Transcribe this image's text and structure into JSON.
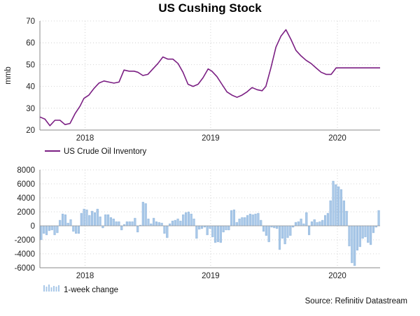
{
  "title": "US Cushing Stock",
  "source": "Source: Refinitiv Datastream",
  "colors": {
    "line": "#7b1f83",
    "bar": "#a9c8e8",
    "bar_edge": "#6f9fd0",
    "grid": "#c8c8c8"
  },
  "chart_data": [
    {
      "type": "line",
      "ylabel": "mmb",
      "ylim": [
        20,
        70
      ],
      "yticks": [
        20,
        30,
        40,
        50,
        60,
        70
      ],
      "xlim": [
        2017.62,
        2020.33
      ],
      "xticks": [
        {
          "pos": 2017.98,
          "label": "2018"
        },
        {
          "pos": 2018.98,
          "label": "2019"
        },
        {
          "pos": 2019.99,
          "label": "2020"
        }
      ],
      "legend": "US Crude Oil Inventory",
      "series": [
        {
          "name": "US Crude Oil Inventory",
          "x": [
            2017.62,
            2017.66,
            2017.7,
            2017.74,
            2017.78,
            2017.82,
            2017.86,
            2017.9,
            2017.94,
            2017.97,
            2018.01,
            2018.05,
            2018.09,
            2018.13,
            2018.17,
            2018.21,
            2018.25,
            2018.29,
            2018.33,
            2018.37,
            2018.4,
            2018.44,
            2018.48,
            2018.52,
            2018.56,
            2018.6,
            2018.64,
            2018.68,
            2018.72,
            2018.76,
            2018.8,
            2018.84,
            2018.88,
            2018.92,
            2018.96,
            2018.99,
            2019.03,
            2019.07,
            2019.11,
            2019.15,
            2019.19,
            2019.23,
            2019.27,
            2019.31,
            2019.35,
            2019.39,
            2019.42,
            2019.46,
            2019.5,
            2019.54,
            2019.58,
            2019.62,
            2019.66,
            2019.7,
            2019.74,
            2019.78,
            2019.82,
            2019.86,
            2019.9,
            2019.94,
            2019.98,
            2020.02,
            2020.06,
            2020.08,
            2020.1,
            2020.12,
            2020.14,
            2020.16,
            2020.18,
            2020.2,
            2020.22,
            2020.24,
            2020.26,
            2020.28,
            2020.3,
            2020.33
          ],
          "y": [
            26,
            25,
            22,
            24.5,
            24.5,
            22.5,
            23,
            27.5,
            31,
            34.5,
            36,
            39,
            41.5,
            42.5,
            42,
            41.5,
            42,
            47.5,
            47,
            47,
            46.5,
            45,
            45.5,
            48,
            50.5,
            53.5,
            52.5,
            52.5,
            50.5,
            46.5,
            41,
            40,
            41,
            44,
            48,
            47,
            44.5,
            41,
            37.5,
            36,
            35,
            36,
            37.5,
            39.5,
            38.5,
            38,
            40,
            48.5,
            58,
            63,
            66,
            61.5,
            56.5,
            54,
            52,
            50.5,
            48.5,
            46.5,
            45.5,
            45.5,
            48.5,
            48.5,
            48.5,
            48.5,
            48.5,
            48.5,
            48.5,
            48.5,
            48.5,
            48.5,
            48.5,
            48.5,
            48.5,
            48.5,
            48.5,
            48.5
          ]
        }
      ]
    },
    {
      "type": "bar",
      "ylim": [
        -6000,
        8000
      ],
      "yticks": [
        -6000,
        -4000,
        -2000,
        0,
        2000,
        4000,
        6000,
        8000
      ],
      "xlim": [
        2017.62,
        2020.33
      ],
      "xticks": [
        {
          "pos": 2017.98,
          "label": "2018"
        },
        {
          "pos": 2018.98,
          "label": "2019"
        },
        {
          "pos": 2019.99,
          "label": "2020"
        }
      ],
      "legend": "1-week change",
      "series": [
        {
          "name": "1-week change",
          "values": [
            -2000,
            -1100,
            -1300,
            -700,
            -600,
            -1300,
            -1000,
            800,
            1700,
            1600,
            400,
            900,
            -800,
            -1100,
            -1100,
            1800,
            2400,
            2300,
            1500,
            2100,
            1900,
            2400,
            1300,
            -300,
            1600,
            1600,
            1200,
            1000,
            600,
            600,
            -600,
            200,
            600,
            600,
            600,
            1100,
            -900,
            100,
            3400,
            3200,
            1000,
            300,
            1100,
            600,
            500,
            400,
            -1100,
            -1700,
            300,
            700,
            800,
            1000,
            700,
            1600,
            1900,
            2000,
            1700,
            1000,
            -1800,
            -500,
            -400,
            -200,
            -1300,
            -400,
            -1600,
            -2400,
            -2300,
            -2400,
            -900,
            -600,
            -600,
            2200,
            2300,
            500,
            1000,
            1200,
            1200,
            1500,
            1700,
            1600,
            1700,
            1800,
            800,
            -800,
            -1400,
            -2300,
            -200,
            -300,
            -400,
            -3400,
            -1800,
            -2600,
            -1700,
            -1400,
            -200,
            500,
            600,
            1000,
            300,
            1900,
            -1300,
            600,
            900,
            500,
            600,
            800,
            1500,
            1800,
            3600,
            6400,
            5900,
            5600,
            5200,
            3600,
            2100,
            -2900,
            -5300,
            -5700,
            -3500,
            -3000,
            -1800,
            -1600,
            -2400,
            -2700,
            -1000,
            -200,
            2200
          ]
        }
      ]
    }
  ]
}
